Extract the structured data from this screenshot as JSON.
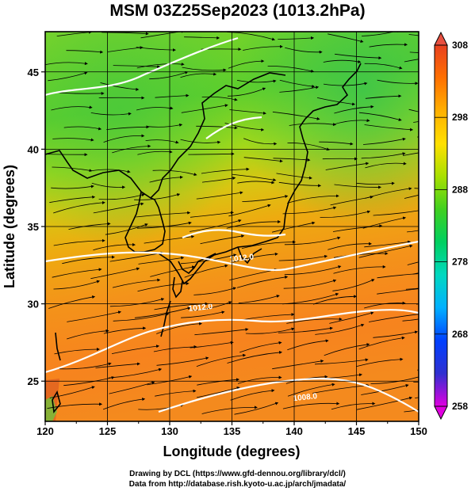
{
  "title": "MSM 03Z25Sep2023 (1013.2hPa)",
  "map": {
    "xlabel": "Longitude (degrees)",
    "ylabel": "Latitude  (degrees)",
    "xlim": [
      120,
      150
    ],
    "ylim": [
      22.4,
      47.6
    ],
    "xticks": [
      120,
      125,
      130,
      135,
      140,
      145,
      150
    ],
    "yticks": [
      25,
      30,
      35,
      40,
      45
    ],
    "contour_labels": [
      {
        "text": "1012.0",
        "lon": 135.8,
        "lat": 32.8
      },
      {
        "text": "1012.0",
        "lon": 132.5,
        "lat": 29.6
      },
      {
        "text": "1008.0",
        "lon": 140.9,
        "lat": 23.8
      }
    ]
  },
  "colorbar": {
    "min": 258,
    "max": 308,
    "ticks": [
      308,
      298,
      288,
      278,
      268,
      258
    ],
    "colors": [
      "#e000e0",
      "#3030d0",
      "#0040ff",
      "#00b0ff",
      "#00d8c0",
      "#00d060",
      "#40d020",
      "#a8e000",
      "#ffe000",
      "#ffb000",
      "#ff7000",
      "#e84020"
    ]
  },
  "credits": {
    "line1": "Drawing by DCL (https://www.gfd-dennou.org/library/dcl/)",
    "line2": "Data from http://database.rish.kyoto-u.ac.jp/arch/jmadata/"
  }
}
